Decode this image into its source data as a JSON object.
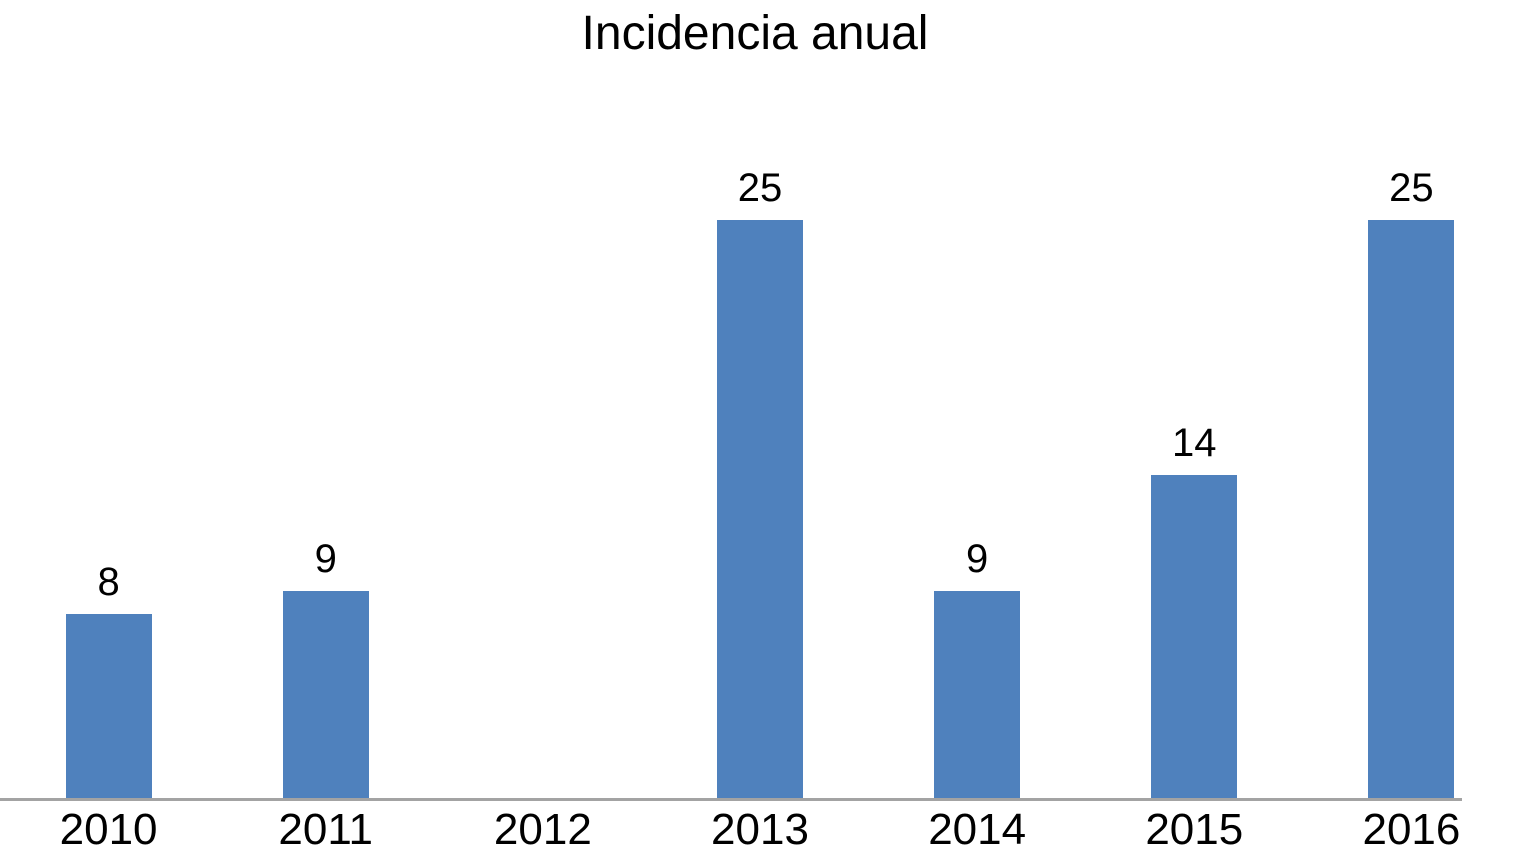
{
  "title": "Incidencia anual",
  "colors": {
    "bar": "#4F81BD",
    "axis_line": "#a3a3a3",
    "text": "#000000",
    "background": "#ffffff"
  },
  "chart_data": {
    "type": "bar",
    "title": "Incidencia anual",
    "categories": [
      "2010",
      "2011",
      "2012",
      "2013",
      "2014",
      "2015",
      "2016"
    ],
    "values": [
      8,
      9,
      0,
      25,
      9,
      14,
      25
    ],
    "data_labels": [
      "8",
      "9",
      "",
      "25",
      "9",
      "14",
      "25"
    ],
    "xlabel": "",
    "ylabel": "",
    "ylim": [
      0,
      25
    ],
    "grid": false,
    "legend": false,
    "y_axis_visible": false,
    "bar_color": "#4F81BD"
  }
}
